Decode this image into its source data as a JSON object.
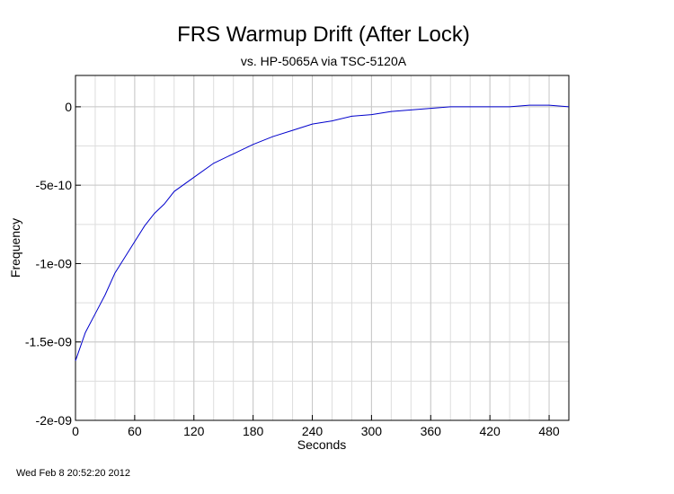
{
  "chart_data": {
    "type": "line",
    "title": "FRS Warmup Drift (After Lock)",
    "subtitle": "vs. HP-5065A via TSC-5120A",
    "xlabel": "Seconds",
    "ylabel": "Frequency",
    "xlim": [
      0,
      500
    ],
    "ylim": [
      -2e-09,
      2e-10
    ],
    "x_ticks": [
      0,
      60,
      120,
      180,
      240,
      300,
      360,
      420,
      480
    ],
    "x_tick_labels": [
      "0",
      "60",
      "120",
      "180",
      "240",
      "300",
      "360",
      "420",
      "480"
    ],
    "y_ticks": [
      -2e-09,
      -1.5e-09,
      -1e-09,
      -5e-10,
      0
    ],
    "y_tick_labels": [
      "-2e-09",
      "-1.5e-09",
      "-1e-09",
      "-5e-10",
      "0"
    ],
    "grid": true,
    "series": [
      {
        "color": "#0000cc",
        "x": [
          0,
          10,
          20,
          30,
          40,
          50,
          60,
          70,
          80,
          90,
          100,
          120,
          140,
          160,
          180,
          200,
          220,
          240,
          260,
          280,
          300,
          320,
          340,
          360,
          380,
          400,
          420,
          440,
          460,
          480,
          500
        ],
        "y": [
          -1.62e-09,
          -1.44e-09,
          -1.32e-09,
          -1.2e-09,
          -1.06e-09,
          -9.6e-10,
          -8.6e-10,
          -7.6e-10,
          -6.8e-10,
          -6.2e-10,
          -5.4e-10,
          -4.5e-10,
          -3.6e-10,
          -3e-10,
          -2.4e-10,
          -1.9e-10,
          -1.5e-10,
          -1.1e-10,
          -9e-11,
          -6e-11,
          -5e-11,
          -3e-11,
          -2e-11,
          -1e-11,
          0,
          0,
          0,
          0,
          1e-11,
          1e-11,
          0
        ]
      }
    ]
  },
  "footer": {
    "timestamp": "Wed Feb  8 20:52:20 2012"
  }
}
